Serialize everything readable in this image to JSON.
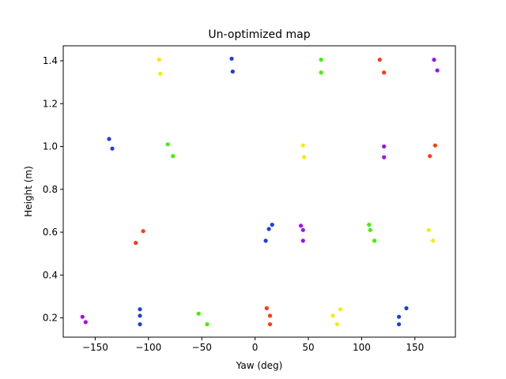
{
  "chart_data": {
    "type": "scatter",
    "title": "Un-optimized map",
    "xlabel": "Yaw (deg)",
    "ylabel": "Height (m)",
    "xlim": [
      -180,
      188
    ],
    "ylim": [
      0.11,
      1.47
    ],
    "xticks": [
      -150,
      -100,
      -50,
      0,
      50,
      100,
      150
    ],
    "yticks": [
      0.2,
      0.4,
      0.6,
      0.8,
      1.0,
      1.2,
      1.4
    ],
    "xtick_labels": [
      "−150",
      "−100",
      "−50",
      "0",
      "50",
      "100",
      "150"
    ],
    "ytick_labels": [
      "0.2",
      "0.4",
      "0.6",
      "0.8",
      "1.0",
      "1.2",
      "1.4"
    ],
    "grid": false,
    "legend": "none",
    "color_names": {
      "blue": "#1f3fdd",
      "red": "#ff3a10",
      "yellow": "#f2ee00",
      "green": "#44ee00",
      "purple": "#a010f0"
    },
    "points": [
      {
        "x": -137,
        "y": 1.035,
        "color": "blue"
      },
      {
        "x": -134,
        "y": 0.99,
        "color": "blue"
      },
      {
        "x": -108,
        "y": 0.24,
        "color": "blue"
      },
      {
        "x": -108,
        "y": 0.21,
        "color": "blue"
      },
      {
        "x": -108,
        "y": 0.17,
        "color": "blue"
      },
      {
        "x": -22,
        "y": 1.41,
        "color": "blue"
      },
      {
        "x": -21,
        "y": 1.35,
        "color": "blue"
      },
      {
        "x": 10,
        "y": 0.56,
        "color": "blue"
      },
      {
        "x": 13,
        "y": 0.615,
        "color": "blue"
      },
      {
        "x": 16,
        "y": 0.635,
        "color": "blue"
      },
      {
        "x": 135,
        "y": 0.205,
        "color": "blue"
      },
      {
        "x": 135,
        "y": 0.17,
        "color": "blue"
      },
      {
        "x": 142,
        "y": 0.245,
        "color": "blue"
      },
      {
        "x": -112,
        "y": 0.55,
        "color": "red"
      },
      {
        "x": -105,
        "y": 0.605,
        "color": "red"
      },
      {
        "x": 11,
        "y": 0.245,
        "color": "red"
      },
      {
        "x": 14,
        "y": 0.21,
        "color": "red"
      },
      {
        "x": 14,
        "y": 0.17,
        "color": "red"
      },
      {
        "x": 117,
        "y": 1.405,
        "color": "red"
      },
      {
        "x": 121,
        "y": 1.345,
        "color": "red"
      },
      {
        "x": 164,
        "y": 0.955,
        "color": "red"
      },
      {
        "x": 169,
        "y": 1.005,
        "color": "red"
      },
      {
        "x": -90,
        "y": 1.405,
        "color": "yellow"
      },
      {
        "x": -89,
        "y": 1.34,
        "color": "yellow"
      },
      {
        "x": 45,
        "y": 1.005,
        "color": "yellow"
      },
      {
        "x": 46,
        "y": 0.95,
        "color": "yellow"
      },
      {
        "x": 73,
        "y": 0.21,
        "color": "yellow"
      },
      {
        "x": 77,
        "y": 0.17,
        "color": "yellow"
      },
      {
        "x": 80,
        "y": 0.24,
        "color": "yellow"
      },
      {
        "x": 163,
        "y": 0.61,
        "color": "yellow"
      },
      {
        "x": 167,
        "y": 0.56,
        "color": "yellow"
      },
      {
        "x": -82,
        "y": 1.01,
        "color": "green"
      },
      {
        "x": -77,
        "y": 0.955,
        "color": "green"
      },
      {
        "x": -53,
        "y": 0.22,
        "color": "green"
      },
      {
        "x": -45,
        "y": 0.17,
        "color": "green"
      },
      {
        "x": 62,
        "y": 1.405,
        "color": "green"
      },
      {
        "x": 62,
        "y": 1.345,
        "color": "green"
      },
      {
        "x": 107,
        "y": 0.635,
        "color": "green"
      },
      {
        "x": 108,
        "y": 0.61,
        "color": "green"
      },
      {
        "x": 112,
        "y": 0.56,
        "color": "green"
      },
      {
        "x": -162,
        "y": 0.205,
        "color": "purple"
      },
      {
        "x": -159,
        "y": 0.18,
        "color": "purple"
      },
      {
        "x": 43,
        "y": 0.63,
        "color": "purple"
      },
      {
        "x": 45,
        "y": 0.61,
        "color": "purple"
      },
      {
        "x": 45,
        "y": 0.56,
        "color": "purple"
      },
      {
        "x": 121,
        "y": 1.0,
        "color": "purple"
      },
      {
        "x": 121,
        "y": 0.95,
        "color": "purple"
      },
      {
        "x": 168,
        "y": 1.405,
        "color": "purple"
      },
      {
        "x": 171,
        "y": 1.355,
        "color": "purple"
      }
    ]
  }
}
